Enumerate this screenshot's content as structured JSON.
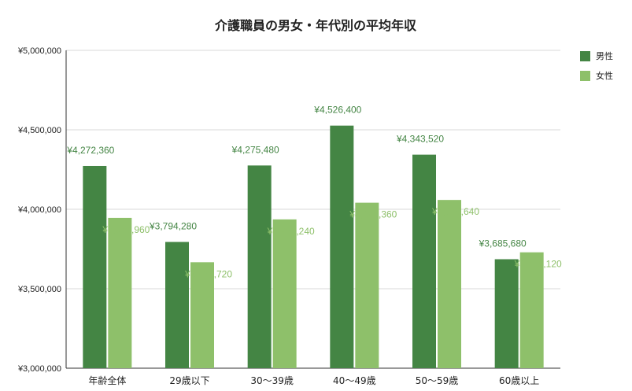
{
  "chart_data": {
    "type": "bar",
    "title": "介護職員の男女・年代別の平均年収",
    "categories": [
      "年齢全体",
      "29歳以下",
      "30〜39歳",
      "40〜49歳",
      "50〜59歳",
      "60歳以上"
    ],
    "series": [
      {
        "name": "男性",
        "color": "#448544",
        "values": [
          4272360,
          3794280,
          4275480,
          4526400,
          4343520,
          3685680
        ],
        "labels": [
          "¥4,272,360",
          "¥3,794,280",
          "¥4,275,480",
          "¥4,526,400",
          "¥4,343,520",
          "¥3,685,680"
        ]
      },
      {
        "name": "女性",
        "color": "#8ec06a",
        "values": [
          3945960,
          3666720,
          3936240,
          4041360,
          4058640,
          3729120
        ],
        "labels": [
          "¥3,945,960",
          "¥3,666,720",
          "¥3,936,240",
          "¥4,041,360",
          "¥4,058,640",
          "¥3,729,120"
        ]
      }
    ],
    "ylim": [
      3000000,
      5000000
    ],
    "yticks": [
      3000000,
      3500000,
      4000000,
      4500000,
      5000000
    ],
    "ytick_labels": [
      "¥3,000,000",
      "¥3,500,000",
      "¥4,000,000",
      "¥4,500,000",
      "¥5,000,000"
    ],
    "xlabel": "",
    "ylabel": "",
    "grid": true,
    "legend_position": "top-right",
    "colors": {
      "grid": "#d9d9d9",
      "axis": "#333333",
      "text": "#222222"
    }
  }
}
